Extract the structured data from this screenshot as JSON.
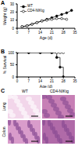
{
  "chart_data": [
    {
      "type": "line",
      "panel": "A",
      "x_label": "Age (d)",
      "y_label": "Weight (g)",
      "x": [
        3,
        6,
        9,
        12,
        15,
        18,
        21,
        24,
        27,
        30,
        33
      ],
      "series": [
        {
          "name": "WT",
          "color": "#000000",
          "marker": "circle",
          "values": [
            2,
            3,
            5,
            7,
            9,
            11,
            13,
            15,
            17,
            19,
            22
          ]
        },
        {
          "name": "CD4-NIKtg",
          "color": "#000000",
          "marker": "open_circle",
          "values": [
            2,
            3,
            5,
            7,
            9,
            10,
            11,
            12,
            12,
            11,
            null
          ]
        }
      ],
      "xlim": [
        0,
        35
      ],
      "xticks": [
        0,
        7,
        14,
        21,
        28,
        35
      ],
      "ylim": [
        0,
        30
      ],
      "yticks": [
        0,
        10,
        20,
        30
      ],
      "legend": "upper left"
    },
    {
      "type": "line",
      "panel": "B",
      "x_label": "Age (d)",
      "y_label": "% Survival",
      "x": [
        0,
        7,
        14,
        21,
        24,
        26,
        28
      ],
      "series": [
        {
          "name": "WT",
          "color": "#000000",
          "marker": "open_circle",
          "line_style": "step",
          "values": [
            100,
            100,
            100,
            100,
            100,
            100,
            100
          ]
        },
        {
          "name": "CD4-NIKtg",
          "color": "#000000",
          "marker": "circle",
          "line_style": "step",
          "values": [
            100,
            100,
            100,
            100,
            80,
            40,
            0
          ]
        }
      ],
      "xlim": [
        0,
        35
      ],
      "xticks": [
        0,
        7,
        14,
        21,
        28,
        35
      ],
      "ylim": [
        0,
        100
      ],
      "yticks": [
        0,
        50,
        100
      ]
    }
  ],
  "panel_c": {
    "panel": "C",
    "columns": [
      "WT",
      "CD4-NIKtg"
    ],
    "rows": [
      "Lung",
      "Colon"
    ]
  }
}
